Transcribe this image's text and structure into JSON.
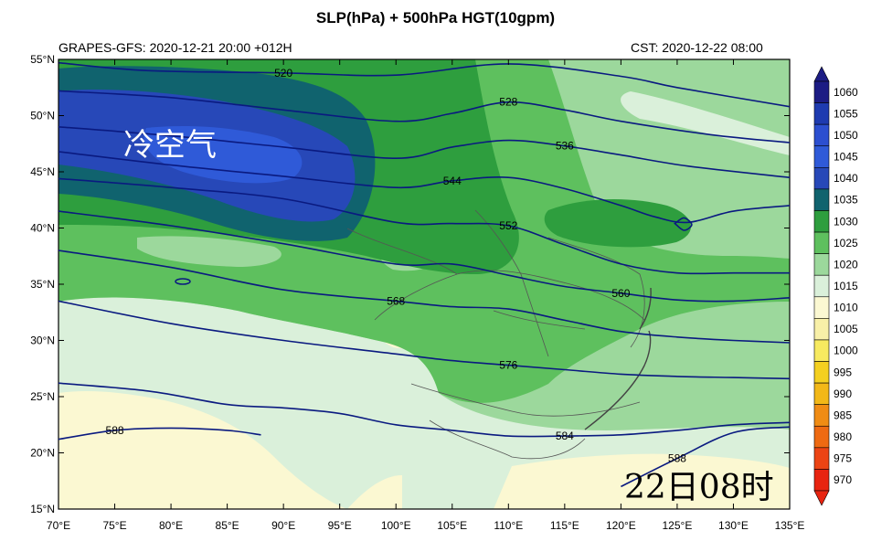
{
  "title": "SLP(hPa) + 500hPa HGT(10gpm)",
  "subtitle_left": "GRAPES-GFS: 2020-12-21 20:00 +012H",
  "subtitle_right": "CST: 2020-12-22 08:00",
  "map_annotation": "冷空气",
  "time_label": "22日08时",
  "lat_ticks": [
    "55°N",
    "50°N",
    "45°N",
    "40°N",
    "35°N",
    "30°N",
    "25°N",
    "20°N",
    "15°N"
  ],
  "lon_ticks": [
    "70°E",
    "75°E",
    "80°E",
    "85°E",
    "90°E",
    "95°E",
    "100°E",
    "105°E",
    "110°E",
    "115°E",
    "120°E",
    "125°E",
    "130°E",
    "135°E"
  ],
  "colorbar": {
    "labels": [
      "1060",
      "1055",
      "1050",
      "1045",
      "1040",
      "1035",
      "1030",
      "1025",
      "1020",
      "1015",
      "1010",
      "1005",
      "1000",
      "995",
      "990",
      "985",
      "980",
      "975",
      "970"
    ],
    "colors": [
      "#1c1c84",
      "#1e3bb0",
      "#2c4fd0",
      "#2f5ad8",
      "#2748b8",
      "#10636e",
      "#2e9e3e",
      "#5ec05e",
      "#9cd89c",
      "#daf0da",
      "#fbf8d2",
      "#f8f0a8",
      "#f7ea60",
      "#f4d020",
      "#f2b818",
      "#f08c14",
      "#ee6a12",
      "#ec4414",
      "#e82410"
    ]
  },
  "contours": [
    {
      "label": "520",
      "series": [
        [
          [
            70,
            54.7
          ],
          [
            78,
            54.0
          ],
          [
            90,
            53.8
          ],
          [
            100,
            53.6
          ],
          [
            110,
            54.6
          ],
          [
            120,
            53.5
          ],
          [
            125,
            52.5
          ],
          [
            135,
            50.8
          ]
        ]
      ]
    },
    {
      "label": "528",
      "series": [
        [
          [
            70,
            52.2
          ],
          [
            80,
            51.6
          ],
          [
            90,
            50.5
          ],
          [
            100,
            49.5
          ],
          [
            105,
            50.2
          ],
          [
            110,
            51.2
          ],
          [
            115,
            50.5
          ],
          [
            120,
            49.5
          ],
          [
            128,
            48.3
          ],
          [
            135,
            47.6
          ]
        ]
      ]
    },
    {
      "label": "536",
      "series": [
        [
          [
            70,
            49.0
          ],
          [
            80,
            48.2
          ],
          [
            90,
            47.2
          ],
          [
            100,
            46.2
          ],
          [
            105,
            47.2
          ],
          [
            110,
            47.8
          ],
          [
            115,
            47.3
          ],
          [
            120,
            46.5
          ],
          [
            126,
            45.5
          ],
          [
            135,
            44.5
          ]
        ]
      ]
    },
    {
      "label": "544",
      "series": [
        [
          [
            70,
            46.8
          ],
          [
            80,
            45.6
          ],
          [
            90,
            44.6
          ],
          [
            100,
            43.6
          ],
          [
            105,
            44.2
          ],
          [
            110,
            44.5
          ],
          [
            115,
            43.5
          ],
          [
            120,
            42.0
          ],
          [
            123,
            41.0
          ],
          [
            126,
            40.5
          ],
          [
            130,
            41.5
          ],
          [
            135,
            42.0
          ]
        ]
      ]
    },
    {
      "label": "552",
      "series": [
        [
          [
            70,
            44.4
          ],
          [
            80,
            43.6
          ],
          [
            90,
            42.6
          ],
          [
            100,
            40.5
          ],
          [
            105,
            40.4
          ],
          [
            110,
            40.2
          ],
          [
            115,
            38.5
          ],
          [
            120,
            36.8
          ],
          [
            125,
            36.0
          ],
          [
            130,
            36.0
          ],
          [
            135,
            36.0
          ]
        ]
      ]
    },
    {
      "label": "560",
      "series": [
        [
          [
            70,
            41.5
          ],
          [
            80,
            40.2
          ],
          [
            90,
            38.6
          ],
          [
            100,
            36.8
          ],
          [
            105,
            36.8
          ],
          [
            110,
            35.8
          ],
          [
            115,
            34.8
          ],
          [
            120,
            34.2
          ],
          [
            125,
            33.6
          ],
          [
            130,
            33.5
          ],
          [
            135,
            33.8
          ]
        ]
      ]
    },
    {
      "label": "568",
      "series": [
        [
          [
            70,
            38.0
          ],
          [
            80,
            36.5
          ],
          [
            90,
            34.5
          ],
          [
            100,
            33.5
          ],
          [
            105,
            33.0
          ],
          [
            110,
            32.8
          ],
          [
            115,
            31.8
          ],
          [
            120,
            30.8
          ],
          [
            125,
            30.3
          ],
          [
            130,
            30.0
          ],
          [
            135,
            29.8
          ]
        ]
      ]
    },
    {
      "label": "576",
      "series": [
        [
          [
            70,
            33.5
          ],
          [
            80,
            31.5
          ],
          [
            90,
            30.0
          ],
          [
            100,
            28.8
          ],
          [
            105,
            28.2
          ],
          [
            110,
            27.8
          ],
          [
            115,
            27.4
          ],
          [
            120,
            27.0
          ],
          [
            125,
            26.8
          ],
          [
            130,
            26.7
          ],
          [
            135,
            26.6
          ]
        ]
      ]
    },
    {
      "label": "584",
      "series": [
        [
          [
            70,
            26.2
          ],
          [
            78,
            25.5
          ],
          [
            85,
            24.3
          ],
          [
            90,
            24.0
          ],
          [
            95,
            23.5
          ],
          [
            100,
            22.5
          ],
          [
            105,
            22.0
          ],
          [
            110,
            21.5
          ],
          [
            115,
            21.5
          ],
          [
            120,
            21.6
          ],
          [
            125,
            22.0
          ],
          [
            130,
            22.5
          ],
          [
            135,
            22.7
          ]
        ]
      ]
    },
    {
      "label": "588",
      "series": [
        [
          [
            70,
            21.2
          ],
          [
            75,
            22.0
          ],
          [
            80,
            22.2
          ],
          [
            85,
            22.0
          ],
          [
            88,
            21.6
          ]
        ],
        [
          [
            120,
            17.0
          ],
          [
            125,
            19.5
          ],
          [
            130,
            21.8
          ],
          [
            135,
            22.3
          ]
        ]
      ]
    }
  ],
  "contour_closed": [
    {
      "label": "544",
      "pts": [
        [
          124.8,
          40.4
        ],
        [
          125.6,
          39.8
        ],
        [
          126.3,
          40.3
        ],
        [
          125.6,
          40.9
        ],
        [
          124.8,
          40.4
        ]
      ]
    }
  ]
}
